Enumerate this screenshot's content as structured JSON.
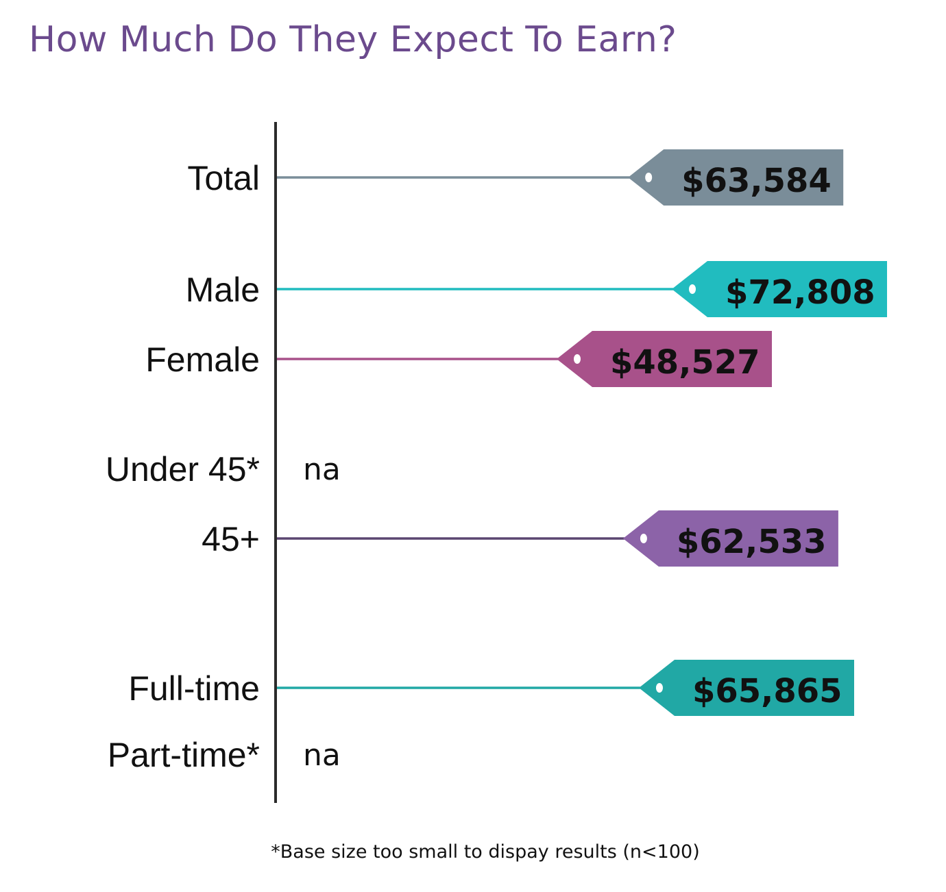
{
  "title": "How Much Do They Expect To Earn?",
  "footnote": "*Base size too small to dispay results (n<100)",
  "chart_data": {
    "type": "bar",
    "title": "How Much Do They Expect To Earn?",
    "categories": [
      "Total",
      "Male",
      "Female",
      "Under 45*",
      "45+",
      "Full-time",
      "Part-time*"
    ],
    "values": [
      63584,
      72808,
      48527,
      null,
      62533,
      65865,
      null
    ],
    "value_labels": [
      "$63,584",
      "$72,808",
      "$48,527",
      "na",
      "$62,533",
      "$65,865",
      "na"
    ],
    "missing_label": "na",
    "colors": [
      "#7a8d99",
      "#21bcbf",
      "#a8518a",
      null,
      "#8c63a8",
      "#21a8a5",
      null
    ],
    "line_colors": [
      "#7a8d99",
      "#21bcbf",
      "#a8518a",
      null,
      "#5a4570",
      "#21a8a5",
      null
    ],
    "bar_style": "price tag",
    "grid": false,
    "legend": "none"
  }
}
